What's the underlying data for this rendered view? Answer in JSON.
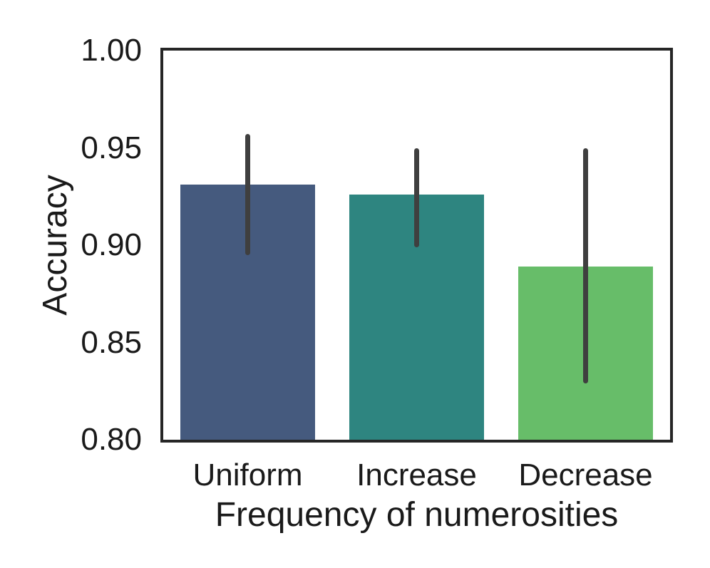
{
  "chart_data": {
    "type": "bar",
    "title": "",
    "xlabel": "Frequency of numerosities",
    "ylabel": "Accuracy",
    "categories": [
      "Uniform",
      "Increase",
      "Decrease"
    ],
    "values": [
      0.931,
      0.926,
      0.889
    ],
    "error_bars": [
      {
        "low": 0.895,
        "high": 0.957
      },
      {
        "low": 0.899,
        "high": 0.95
      },
      {
        "low": 0.829,
        "high": 0.95
      }
    ],
    "bar_colors": [
      "#455a7e",
      "#2e8580",
      "#67bd69"
    ],
    "error_bar_color": "#3f3f3f",
    "axis_color": "#262626",
    "text_color": "#1a1a1a",
    "background_color": "#ffffff",
    "ylim": [
      0.8,
      1.0
    ],
    "yticks": [
      0.8,
      0.85,
      0.9,
      0.95,
      1.0
    ],
    "ytick_labels": [
      "0.80",
      "0.85",
      "0.90",
      "0.95",
      "1.00"
    ],
    "grid": false,
    "legend_position": "none",
    "bar_width_fraction": 0.8
  }
}
